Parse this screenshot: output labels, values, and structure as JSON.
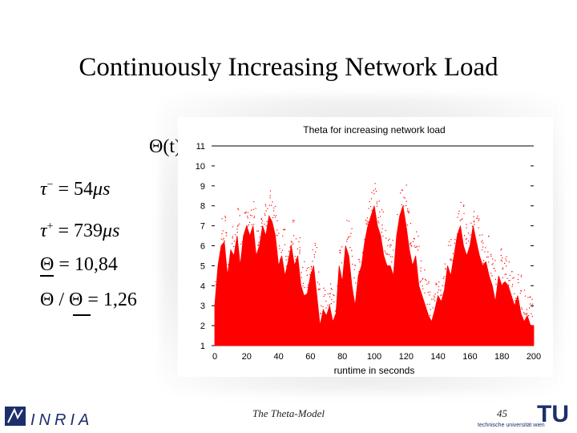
{
  "slide": {
    "title": "Continuously Increasing Network Load",
    "theta_symbol": "Θ(t)",
    "footer": "The Theta-Model",
    "page_number": "45",
    "logo_left": "INRIA",
    "logo_right": "TU",
    "logo_right_sub": "technische universität wien"
  },
  "formulas": {
    "tau_minus": {
      "lhs": "τ",
      "sup": "−",
      "eq": "= 54",
      "unit": "μs"
    },
    "tau_plus": {
      "lhs": "τ",
      "sup": "+",
      "eq": "= 739",
      "unit": "μs"
    },
    "theta_mean": {
      "lhs": "Θ",
      "eq": "= 10,84"
    },
    "theta_ratio": {
      "lhs": "Θ / Θ",
      "eq": "= 1,26"
    }
  },
  "chart_data": {
    "type": "scatter",
    "title": "Theta for increasing network load",
    "xlabel": "runtime in seconds",
    "ylabel": "",
    "xlim": [
      0,
      200
    ],
    "ylim": [
      1,
      11
    ],
    "xticks": [
      "0",
      "20",
      "40",
      "60",
      "80",
      "100",
      "120",
      "140",
      "160",
      "180",
      "200"
    ],
    "yticks": [
      "1",
      "2",
      "3",
      "4",
      "5",
      "6",
      "7",
      "8",
      "9",
      "10",
      "11"
    ],
    "series_color": "#ff0000",
    "envelope": [
      [
        0,
        3.0
      ],
      [
        2,
        5.0
      ],
      [
        4,
        6.0
      ],
      [
        6,
        6.2
      ],
      [
        8,
        4.5
      ],
      [
        10,
        5.8
      ],
      [
        12,
        5.5
      ],
      [
        14,
        6.5
      ],
      [
        16,
        5.0
      ],
      [
        18,
        6.5
      ],
      [
        20,
        7.0
      ],
      [
        22,
        6.5
      ],
      [
        24,
        7.0
      ],
      [
        26,
        5.5
      ],
      [
        28,
        6.0
      ],
      [
        30,
        7.0
      ],
      [
        32,
        6.5
      ],
      [
        34,
        7.5
      ],
      [
        36,
        7.2
      ],
      [
        38,
        6.5
      ],
      [
        40,
        5.0
      ],
      [
        42,
        5.5
      ],
      [
        44,
        4.5
      ],
      [
        46,
        5.2
      ],
      [
        48,
        6.0
      ],
      [
        50,
        5.0
      ],
      [
        52,
        5.5
      ],
      [
        54,
        4.0
      ],
      [
        56,
        3.5
      ],
      [
        58,
        3.6
      ],
      [
        60,
        4.5
      ],
      [
        62,
        5.0
      ],
      [
        64,
        3.5
      ],
      [
        66,
        2.0
      ],
      [
        68,
        2.8
      ],
      [
        70,
        2.5
      ],
      [
        72,
        3.0
      ],
      [
        74,
        2.2
      ],
      [
        76,
        2.6
      ],
      [
        78,
        5.0
      ],
      [
        80,
        4.2
      ],
      [
        82,
        6.0
      ],
      [
        84,
        5.5
      ],
      [
        86,
        4.0
      ],
      [
        88,
        3.0
      ],
      [
        90,
        4.5
      ],
      [
        92,
        5.0
      ],
      [
        94,
        6.2
      ],
      [
        96,
        7.0
      ],
      [
        98,
        7.5
      ],
      [
        100,
        8.0
      ],
      [
        102,
        7.0
      ],
      [
        104,
        6.5
      ],
      [
        106,
        5.5
      ],
      [
        108,
        5.0
      ],
      [
        110,
        5.0
      ],
      [
        112,
        4.5
      ],
      [
        114,
        6.5
      ],
      [
        116,
        7.5
      ],
      [
        118,
        8.0
      ],
      [
        120,
        7.0
      ],
      [
        122,
        5.8
      ],
      [
        124,
        5.0
      ],
      [
        126,
        5.5
      ],
      [
        128,
        4.0
      ],
      [
        130,
        3.5
      ],
      [
        132,
        3.0
      ],
      [
        134,
        2.5
      ],
      [
        136,
        2.2
      ],
      [
        138,
        2.8
      ],
      [
        140,
        3.5
      ],
      [
        142,
        3.2
      ],
      [
        144,
        3.8
      ],
      [
        146,
        5.0
      ],
      [
        148,
        4.5
      ],
      [
        150,
        5.5
      ],
      [
        152,
        6.5
      ],
      [
        154,
        7.0
      ],
      [
        156,
        6.0
      ],
      [
        158,
        5.5
      ],
      [
        160,
        6.0
      ],
      [
        162,
        7.0
      ],
      [
        164,
        6.2
      ],
      [
        166,
        5.5
      ],
      [
        168,
        5.0
      ],
      [
        170,
        5.2
      ],
      [
        172,
        4.5
      ],
      [
        174,
        4.0
      ],
      [
        176,
        3.2
      ],
      [
        178,
        4.5
      ],
      [
        180,
        4.0
      ],
      [
        182,
        4.2
      ],
      [
        184,
        4.0
      ],
      [
        186,
        3.5
      ],
      [
        188,
        3.0
      ],
      [
        190,
        3.5
      ],
      [
        192,
        2.6
      ],
      [
        194,
        2.2
      ],
      [
        196,
        2.5
      ],
      [
        198,
        2.0
      ],
      [
        200,
        2.0
      ]
    ],
    "grid": false,
    "legend": "none"
  }
}
